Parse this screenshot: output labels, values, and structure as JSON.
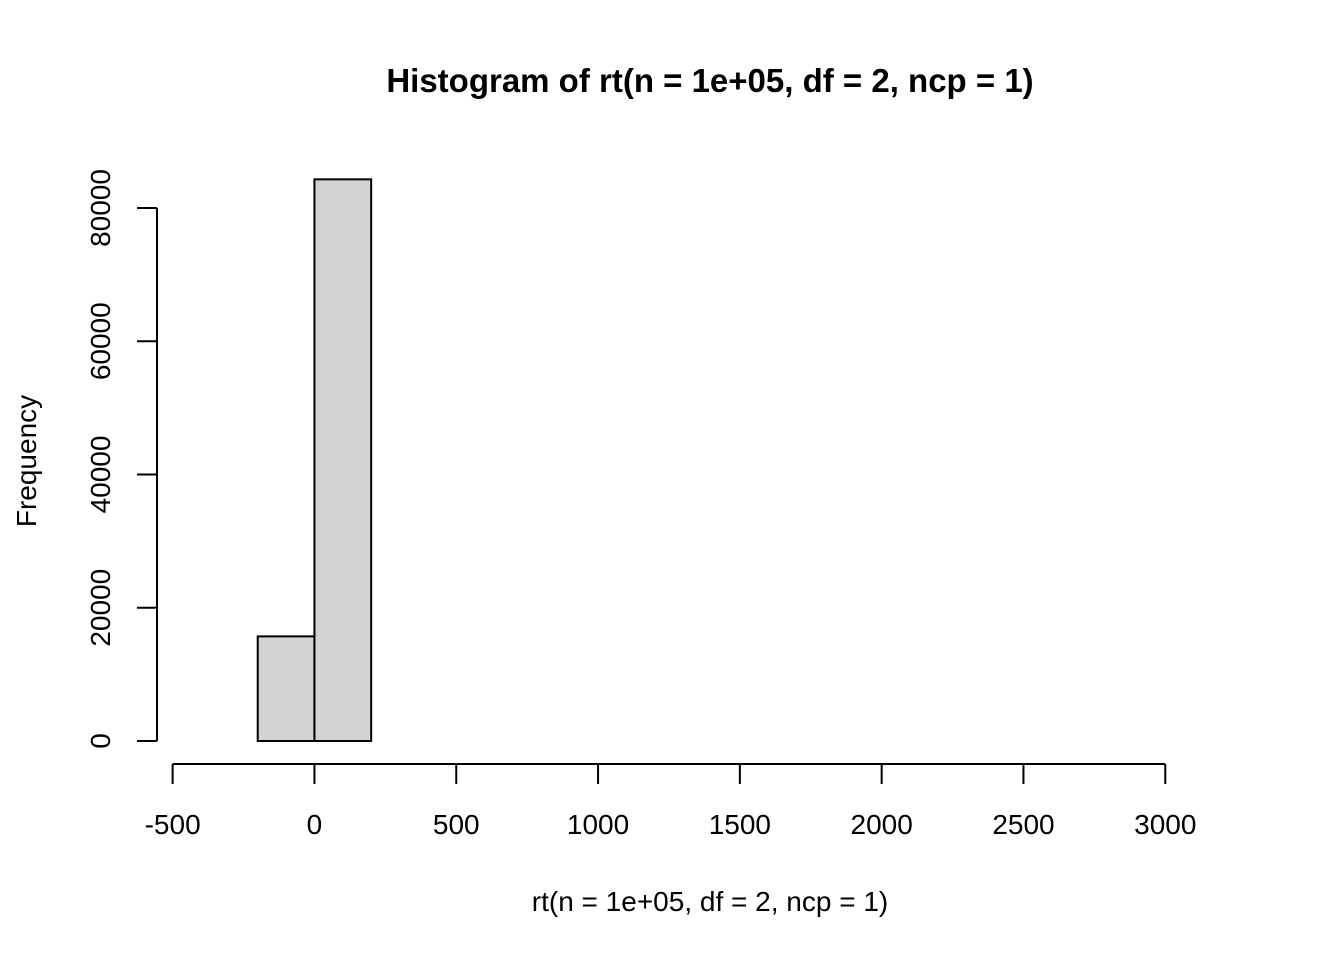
{
  "chart_data": {
    "type": "bar",
    "title": "Histogram of rt(n = 1e+05, df = 2, ncp = 1)",
    "xlabel": "rt(n = 1e+05, df = 2, ncp = 1)",
    "ylabel": "Frequency",
    "xlim": [
      -400,
      3200
    ],
    "ylim": [
      0,
      84500
    ],
    "x_ticks": [
      -500,
      0,
      500,
      1000,
      1500,
      2000,
      2500,
      3000
    ],
    "x_tick_labels": [
      "-500",
      "0",
      "500",
      "1000",
      "1500",
      "2000",
      "2500",
      "3000"
    ],
    "y_ticks": [
      0,
      20000,
      40000,
      60000,
      80000
    ],
    "y_tick_labels": [
      "0",
      "20000",
      "40000",
      "60000",
      "80000"
    ],
    "bin_width": 200,
    "bins": [
      {
        "x0": -400,
        "x1": -200,
        "count": 0
      },
      {
        "x0": -200,
        "x1": 0,
        "count": 15700
      },
      {
        "x0": 0,
        "x1": 200,
        "count": 84300
      },
      {
        "x0": 200,
        "x1": 400,
        "count": 0
      },
      {
        "x0": 400,
        "x1": 600,
        "count": 0
      },
      {
        "x0": 600,
        "x1": 800,
        "count": 0
      },
      {
        "x0": 800,
        "x1": 1000,
        "count": 0
      },
      {
        "x0": 1000,
        "x1": 1200,
        "count": 0
      },
      {
        "x0": 1200,
        "x1": 1400,
        "count": 0
      },
      {
        "x0": 1400,
        "x1": 1600,
        "count": 0
      },
      {
        "x0": 1600,
        "x1": 1800,
        "count": 0
      },
      {
        "x0": 1800,
        "x1": 2000,
        "count": 0
      },
      {
        "x0": 2000,
        "x1": 2200,
        "count": 0
      },
      {
        "x0": 2200,
        "x1": 2400,
        "count": 0
      },
      {
        "x0": 2400,
        "x1": 2600,
        "count": 0
      },
      {
        "x0": 2600,
        "x1": 2800,
        "count": 0
      },
      {
        "x0": 2800,
        "x1": 3000,
        "count": 0
      },
      {
        "x0": 3000,
        "x1": 3200,
        "count": 0
      }
    ],
    "bar_fill": "#d3d3d3",
    "bar_stroke": "#000000",
    "grid": false,
    "legend": "none"
  }
}
